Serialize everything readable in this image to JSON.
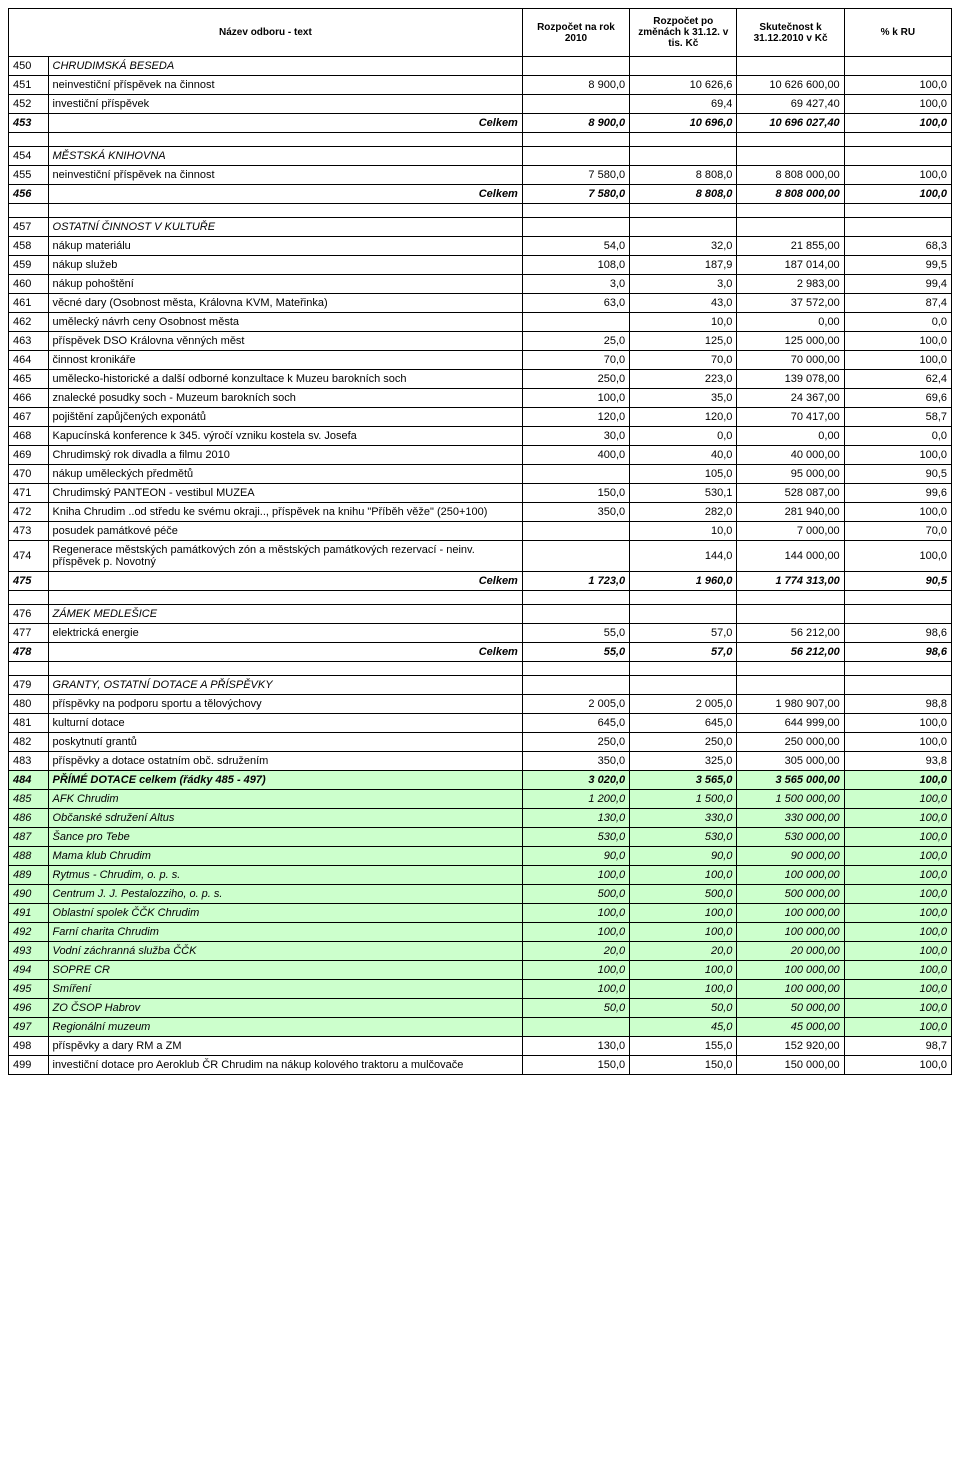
{
  "header": {
    "col_name": "Název odboru - text",
    "col_budget_year": "Rozpočet na rok 2010",
    "col_budget_changes": "Rozpočet po změnách k 31.12. v tis. Kč",
    "col_actual": "Skutečnost k 31.12.2010 v Kč",
    "col_pct": "% k RU"
  },
  "rows": [
    {
      "type": "section",
      "num": "450",
      "name": "CHRUDIMSKÁ BESEDA"
    },
    {
      "type": "data",
      "num": "451",
      "name": "neinvestiční příspěvek na činnost",
      "v1": "8 900,0",
      "v2": "10 626,6",
      "v3": "10 626 600,00",
      "v4": "100,0"
    },
    {
      "type": "data",
      "num": "452",
      "name": "investiční příspěvek",
      "v1": "",
      "v2": "69,4",
      "v3": "69 427,40",
      "v4": "100,0"
    },
    {
      "type": "total",
      "num": "453",
      "name": "Celkem",
      "v1": "8 900,0",
      "v2": "10 696,0",
      "v3": "10 696 027,40",
      "v4": "100,0"
    },
    {
      "type": "spacer"
    },
    {
      "type": "section",
      "num": "454",
      "name": "MĚSTSKÁ KNIHOVNA"
    },
    {
      "type": "data",
      "num": "455",
      "name": "neinvestiční příspěvek na činnost",
      "v1": "7 580,0",
      "v2": "8 808,0",
      "v3": "8 808 000,00",
      "v4": "100,0"
    },
    {
      "type": "total",
      "num": "456",
      "name": "Celkem",
      "v1": "7 580,0",
      "v2": "8 808,0",
      "v3": "8 808 000,00",
      "v4": "100,0"
    },
    {
      "type": "spacer"
    },
    {
      "type": "section",
      "num": "457",
      "name": "OSTATNÍ ČINNOST V KULTUŘE"
    },
    {
      "type": "data",
      "num": "458",
      "name": "nákup materiálu",
      "v1": "54,0",
      "v2": "32,0",
      "v3": "21 855,00",
      "v4": "68,3"
    },
    {
      "type": "data",
      "num": "459",
      "name": "nákup služeb",
      "v1": "108,0",
      "v2": "187,9",
      "v3": "187 014,00",
      "v4": "99,5"
    },
    {
      "type": "data",
      "num": "460",
      "name": "nákup pohoštění",
      "v1": "3,0",
      "v2": "3,0",
      "v3": "2 983,00",
      "v4": "99,4"
    },
    {
      "type": "data",
      "num": "461",
      "name": "věcné dary (Osobnost města, Královna KVM, Mateřinka)",
      "v1": "63,0",
      "v2": "43,0",
      "v3": "37 572,00",
      "v4": "87,4"
    },
    {
      "type": "data",
      "num": "462",
      "name": "umělecký návrh ceny Osobnost města",
      "v1": "",
      "v2": "10,0",
      "v3": "0,00",
      "v4": "0,0"
    },
    {
      "type": "data",
      "num": "463",
      "name": "příspěvek DSO Královna věnných měst",
      "v1": "25,0",
      "v2": "125,0",
      "v3": "125 000,00",
      "v4": "100,0"
    },
    {
      "type": "data",
      "num": "464",
      "name": "činnost kronikáře",
      "v1": "70,0",
      "v2": "70,0",
      "v3": "70 000,00",
      "v4": "100,0"
    },
    {
      "type": "data",
      "num": "465",
      "name": "umělecko-historické a další odborné konzultace k Muzeu barokních soch",
      "v1": "250,0",
      "v2": "223,0",
      "v3": "139 078,00",
      "v4": "62,4"
    },
    {
      "type": "data",
      "num": "466",
      "name": "znalecké posudky soch - Muzeum barokních soch",
      "v1": "100,0",
      "v2": "35,0",
      "v3": "24 367,00",
      "v4": "69,6"
    },
    {
      "type": "data",
      "num": "467",
      "name": "pojištění zapůjčených exponátů",
      "v1": "120,0",
      "v2": "120,0",
      "v3": "70 417,00",
      "v4": "58,7"
    },
    {
      "type": "data",
      "num": "468",
      "name": "Kapucínská konference k 345. výročí vzniku kostela sv. Josefa",
      "v1": "30,0",
      "v2": "0,0",
      "v3": "0,00",
      "v4": "0,0"
    },
    {
      "type": "data",
      "num": "469",
      "name": "Chrudimský rok divadla a filmu 2010",
      "v1": "400,0",
      "v2": "40,0",
      "v3": "40 000,00",
      "v4": "100,0"
    },
    {
      "type": "data",
      "num": "470",
      "name": "nákup uměleckých předmětů",
      "v1": "",
      "v2": "105,0",
      "v3": "95 000,00",
      "v4": "90,5"
    },
    {
      "type": "data",
      "num": "471",
      "name": "Chrudimský PANTEON - vestibul MUZEA",
      "v1": "150,0",
      "v2": "530,1",
      "v3": "528 087,00",
      "v4": "99,6"
    },
    {
      "type": "data",
      "num": "472",
      "name": "Kniha Chrudim ..od středu ke svému okraji.., příspěvek na knihu \"Příběh věže\" (250+100)",
      "v1": "350,0",
      "v2": "282,0",
      "v3": "281 940,00",
      "v4": "100,0"
    },
    {
      "type": "data",
      "num": "473",
      "name": "posudek památkové péče",
      "v1": "",
      "v2": "10,0",
      "v3": "7 000,00",
      "v4": "70,0"
    },
    {
      "type": "data",
      "num": "474",
      "name": "Regenerace městských památkových zón a městských památkových rezervací - neinv. příspěvek p. Novotný",
      "v1": "",
      "v2": "144,0",
      "v3": "144 000,00",
      "v4": "100,0"
    },
    {
      "type": "total",
      "num": "475",
      "name": "Celkem",
      "v1": "1 723,0",
      "v2": "1 960,0",
      "v3": "1 774 313,00",
      "v4": "90,5"
    },
    {
      "type": "spacer"
    },
    {
      "type": "section",
      "num": "476",
      "name": "ZÁMEK MEDLEŠICE"
    },
    {
      "type": "data",
      "num": "477",
      "name": "elektrická energie",
      "v1": "55,0",
      "v2": "57,0",
      "v3": "56 212,00",
      "v4": "98,6"
    },
    {
      "type": "total",
      "num": "478",
      "name": "Celkem",
      "v1": "55,0",
      "v2": "57,0",
      "v3": "56 212,00",
      "v4": "98,6"
    },
    {
      "type": "spacer"
    },
    {
      "type": "section",
      "num": "479",
      "name": "GRANTY, OSTATNÍ DOTACE A PŘÍSPĚVKY"
    },
    {
      "type": "data",
      "num": "480",
      "name": "příspěvky na podporu sportu a tělovýchovy",
      "v1": "2 005,0",
      "v2": "2 005,0",
      "v3": "1 980 907,00",
      "v4": "98,8"
    },
    {
      "type": "data",
      "num": "481",
      "name": "kulturní dotace",
      "v1": "645,0",
      "v2": "645,0",
      "v3": "644 999,00",
      "v4": "100,0"
    },
    {
      "type": "data",
      "num": "482",
      "name": "poskytnutí grantů",
      "v1": "250,0",
      "v2": "250,0",
      "v3": "250 000,00",
      "v4": "100,0"
    },
    {
      "type": "data",
      "num": "483",
      "name": "příspěvky a dotace ostatním obč. sdružením",
      "v1": "350,0",
      "v2": "325,0",
      "v3": "305 000,00",
      "v4": "93,8"
    },
    {
      "type": "green-header",
      "num": "484",
      "name": "PŘÍMÉ DOTACE   celkem  (řádky 485 - 497)",
      "v1": "3 020,0",
      "v2": "3 565,0",
      "v3": "3 565 000,00",
      "v4": "100,0"
    },
    {
      "type": "green",
      "num": "485",
      "name": "AFK Chrudim",
      "v1": "1 200,0",
      "v2": "1 500,0",
      "v3": "1 500 000,00",
      "v4": "100,0"
    },
    {
      "type": "green",
      "num": "486",
      "name": "Občanské sdružení Altus",
      "v1": "130,0",
      "v2": "330,0",
      "v3": "330 000,00",
      "v4": "100,0"
    },
    {
      "type": "green",
      "num": "487",
      "name": "Šance pro Tebe",
      "v1": "530,0",
      "v2": "530,0",
      "v3": "530 000,00",
      "v4": "100,0"
    },
    {
      "type": "green",
      "num": "488",
      "name": "Mama klub Chrudim",
      "v1": "90,0",
      "v2": "90,0",
      "v3": "90 000,00",
      "v4": "100,0"
    },
    {
      "type": "green",
      "num": "489",
      "name": "Rytmus - Chrudim, o. p. s.",
      "v1": "100,0",
      "v2": "100,0",
      "v3": "100 000,00",
      "v4": "100,0"
    },
    {
      "type": "green",
      "num": "490",
      "name": "Centrum J. J. Pestalozziho, o. p. s.",
      "v1": "500,0",
      "v2": "500,0",
      "v3": "500 000,00",
      "v4": "100,0"
    },
    {
      "type": "green",
      "num": "491",
      "name": "Oblastní spolek ČČK Chrudim",
      "v1": "100,0",
      "v2": "100,0",
      "v3": "100 000,00",
      "v4": "100,0"
    },
    {
      "type": "green",
      "num": "492",
      "name": "Farní charita Chrudim",
      "v1": "100,0",
      "v2": "100,0",
      "v3": "100 000,00",
      "v4": "100,0"
    },
    {
      "type": "green",
      "num": "493",
      "name": "Vodní záchranná služba ČČK",
      "v1": "20,0",
      "v2": "20,0",
      "v3": "20 000,00",
      "v4": "100,0"
    },
    {
      "type": "green",
      "num": "494",
      "name": "SOPRE CR",
      "v1": "100,0",
      "v2": "100,0",
      "v3": "100 000,00",
      "v4": "100,0"
    },
    {
      "type": "green",
      "num": "495",
      "name": "Smíření",
      "v1": "100,0",
      "v2": "100,0",
      "v3": "100 000,00",
      "v4": "100,0"
    },
    {
      "type": "green",
      "num": "496",
      "name": "ZO ČSOP Habrov",
      "v1": "50,0",
      "v2": "50,0",
      "v3": "50 000,00",
      "v4": "100,0"
    },
    {
      "type": "green",
      "num": "497",
      "name": "Regionální muzeum",
      "v1": "",
      "v2": "45,0",
      "v3": "45 000,00",
      "v4": "100,0"
    },
    {
      "type": "data",
      "num": "498",
      "name": "příspěvky a dary RM a ZM",
      "v1": "130,0",
      "v2": "155,0",
      "v3": "152 920,00",
      "v4": "98,7"
    },
    {
      "type": "data",
      "num": "499",
      "name": "investiční dotace pro Aeroklub ČR Chrudim na nákup kolového traktoru a mulčovače",
      "v1": "150,0",
      "v2": "150,0",
      "v3": "150 000,00",
      "v4": "100,0"
    }
  ]
}
